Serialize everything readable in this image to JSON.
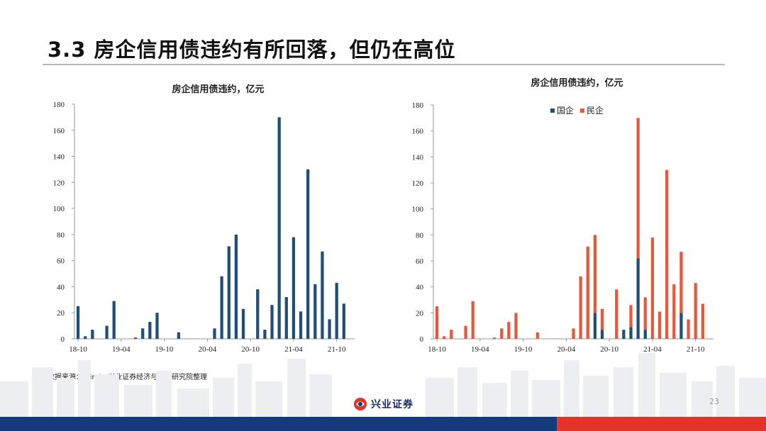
{
  "slide": {
    "title": "3.3 房企信用债违约有所回落，但仍在高位",
    "source": "数据来源：Wind，兴业证券经济与金融研究院整理",
    "page_number": "23",
    "logo_text": "兴业证券"
  },
  "colors": {
    "navy": "#1f4e79",
    "red": "#e8573a",
    "footer_blue": "#143a7a",
    "footer_red": "#e3342a"
  },
  "chart_data": [
    {
      "type": "bar",
      "title": "房企信用债违约，亿元",
      "ylim": [
        0,
        180
      ],
      "yticks": [
        0,
        20,
        40,
        60,
        80,
        100,
        120,
        140,
        160,
        180
      ],
      "xtick_labels": [
        "18-10",
        "19-04",
        "19-10",
        "20-04",
        "20-10",
        "21-04",
        "21-10"
      ],
      "categories": [
        "18-10",
        "18-11",
        "18-12",
        "19-01",
        "19-02",
        "19-03",
        "19-04",
        "19-05",
        "19-06",
        "19-07",
        "19-08",
        "19-09",
        "19-10",
        "19-11",
        "19-12",
        "20-01",
        "20-02",
        "20-03",
        "20-04",
        "20-05",
        "20-06",
        "20-07",
        "20-08",
        "20-09",
        "20-10",
        "20-11",
        "20-12",
        "21-01",
        "21-02",
        "21-03",
        "21-04",
        "21-05",
        "21-06",
        "21-07",
        "21-08",
        "21-09",
        "21-10",
        "21-11",
        "21-12"
      ],
      "series": [
        {
          "values": [
            25,
            2,
            7,
            0,
            10,
            29,
            0,
            0,
            1,
            8,
            13,
            20,
            0,
            0,
            5,
            0,
            0,
            0,
            0,
            8,
            48,
            71,
            80,
            23,
            0,
            38,
            7,
            26,
            170,
            32,
            78,
            21,
            130,
            42,
            67,
            15,
            43,
            27,
            0
          ]
        }
      ],
      "grid": false,
      "legend": "none"
    },
    {
      "type": "bar",
      "stacked": true,
      "title": "房企信用债违约，亿元",
      "ylim": [
        0,
        180
      ],
      "yticks": [
        0,
        20,
        40,
        60,
        80,
        100,
        120,
        140,
        160,
        180
      ],
      "xtick_labels": [
        "18-10",
        "19-04",
        "19-10",
        "20-04",
        "20-10",
        "21-04",
        "21-10"
      ],
      "categories": [
        "18-10",
        "18-11",
        "18-12",
        "19-01",
        "19-02",
        "19-03",
        "19-04",
        "19-05",
        "19-06",
        "19-07",
        "19-08",
        "19-09",
        "19-10",
        "19-11",
        "19-12",
        "20-01",
        "20-02",
        "20-03",
        "20-04",
        "20-05",
        "20-06",
        "20-07",
        "20-08",
        "20-09",
        "20-10",
        "20-11",
        "20-12",
        "21-01",
        "21-02",
        "21-03",
        "21-04",
        "21-05",
        "21-06",
        "21-07",
        "21-08",
        "21-09",
        "21-10",
        "21-11",
        "21-12"
      ],
      "series": [
        {
          "name": "国企",
          "color": "#1f4e79",
          "values": [
            0,
            0,
            0,
            0,
            0,
            0,
            0,
            0,
            0,
            0,
            0,
            0,
            0,
            0,
            0,
            0,
            0,
            0,
            0,
            0,
            0,
            0,
            20,
            7,
            0,
            0,
            7,
            9,
            62,
            7,
            0,
            0,
            0,
            0,
            20,
            0,
            0,
            0,
            0
          ]
        },
        {
          "name": "民企",
          "color": "#e8573a",
          "values": [
            25,
            2,
            7,
            0,
            10,
            29,
            0,
            0,
            1,
            8,
            13,
            20,
            0,
            0,
            5,
            0,
            0,
            0,
            0,
            8,
            48,
            71,
            60,
            16,
            0,
            38,
            0,
            17,
            108,
            25,
            78,
            21,
            130,
            42,
            47,
            15,
            43,
            27,
            0
          ]
        }
      ],
      "grid": false,
      "legend": "top-center"
    }
  ]
}
